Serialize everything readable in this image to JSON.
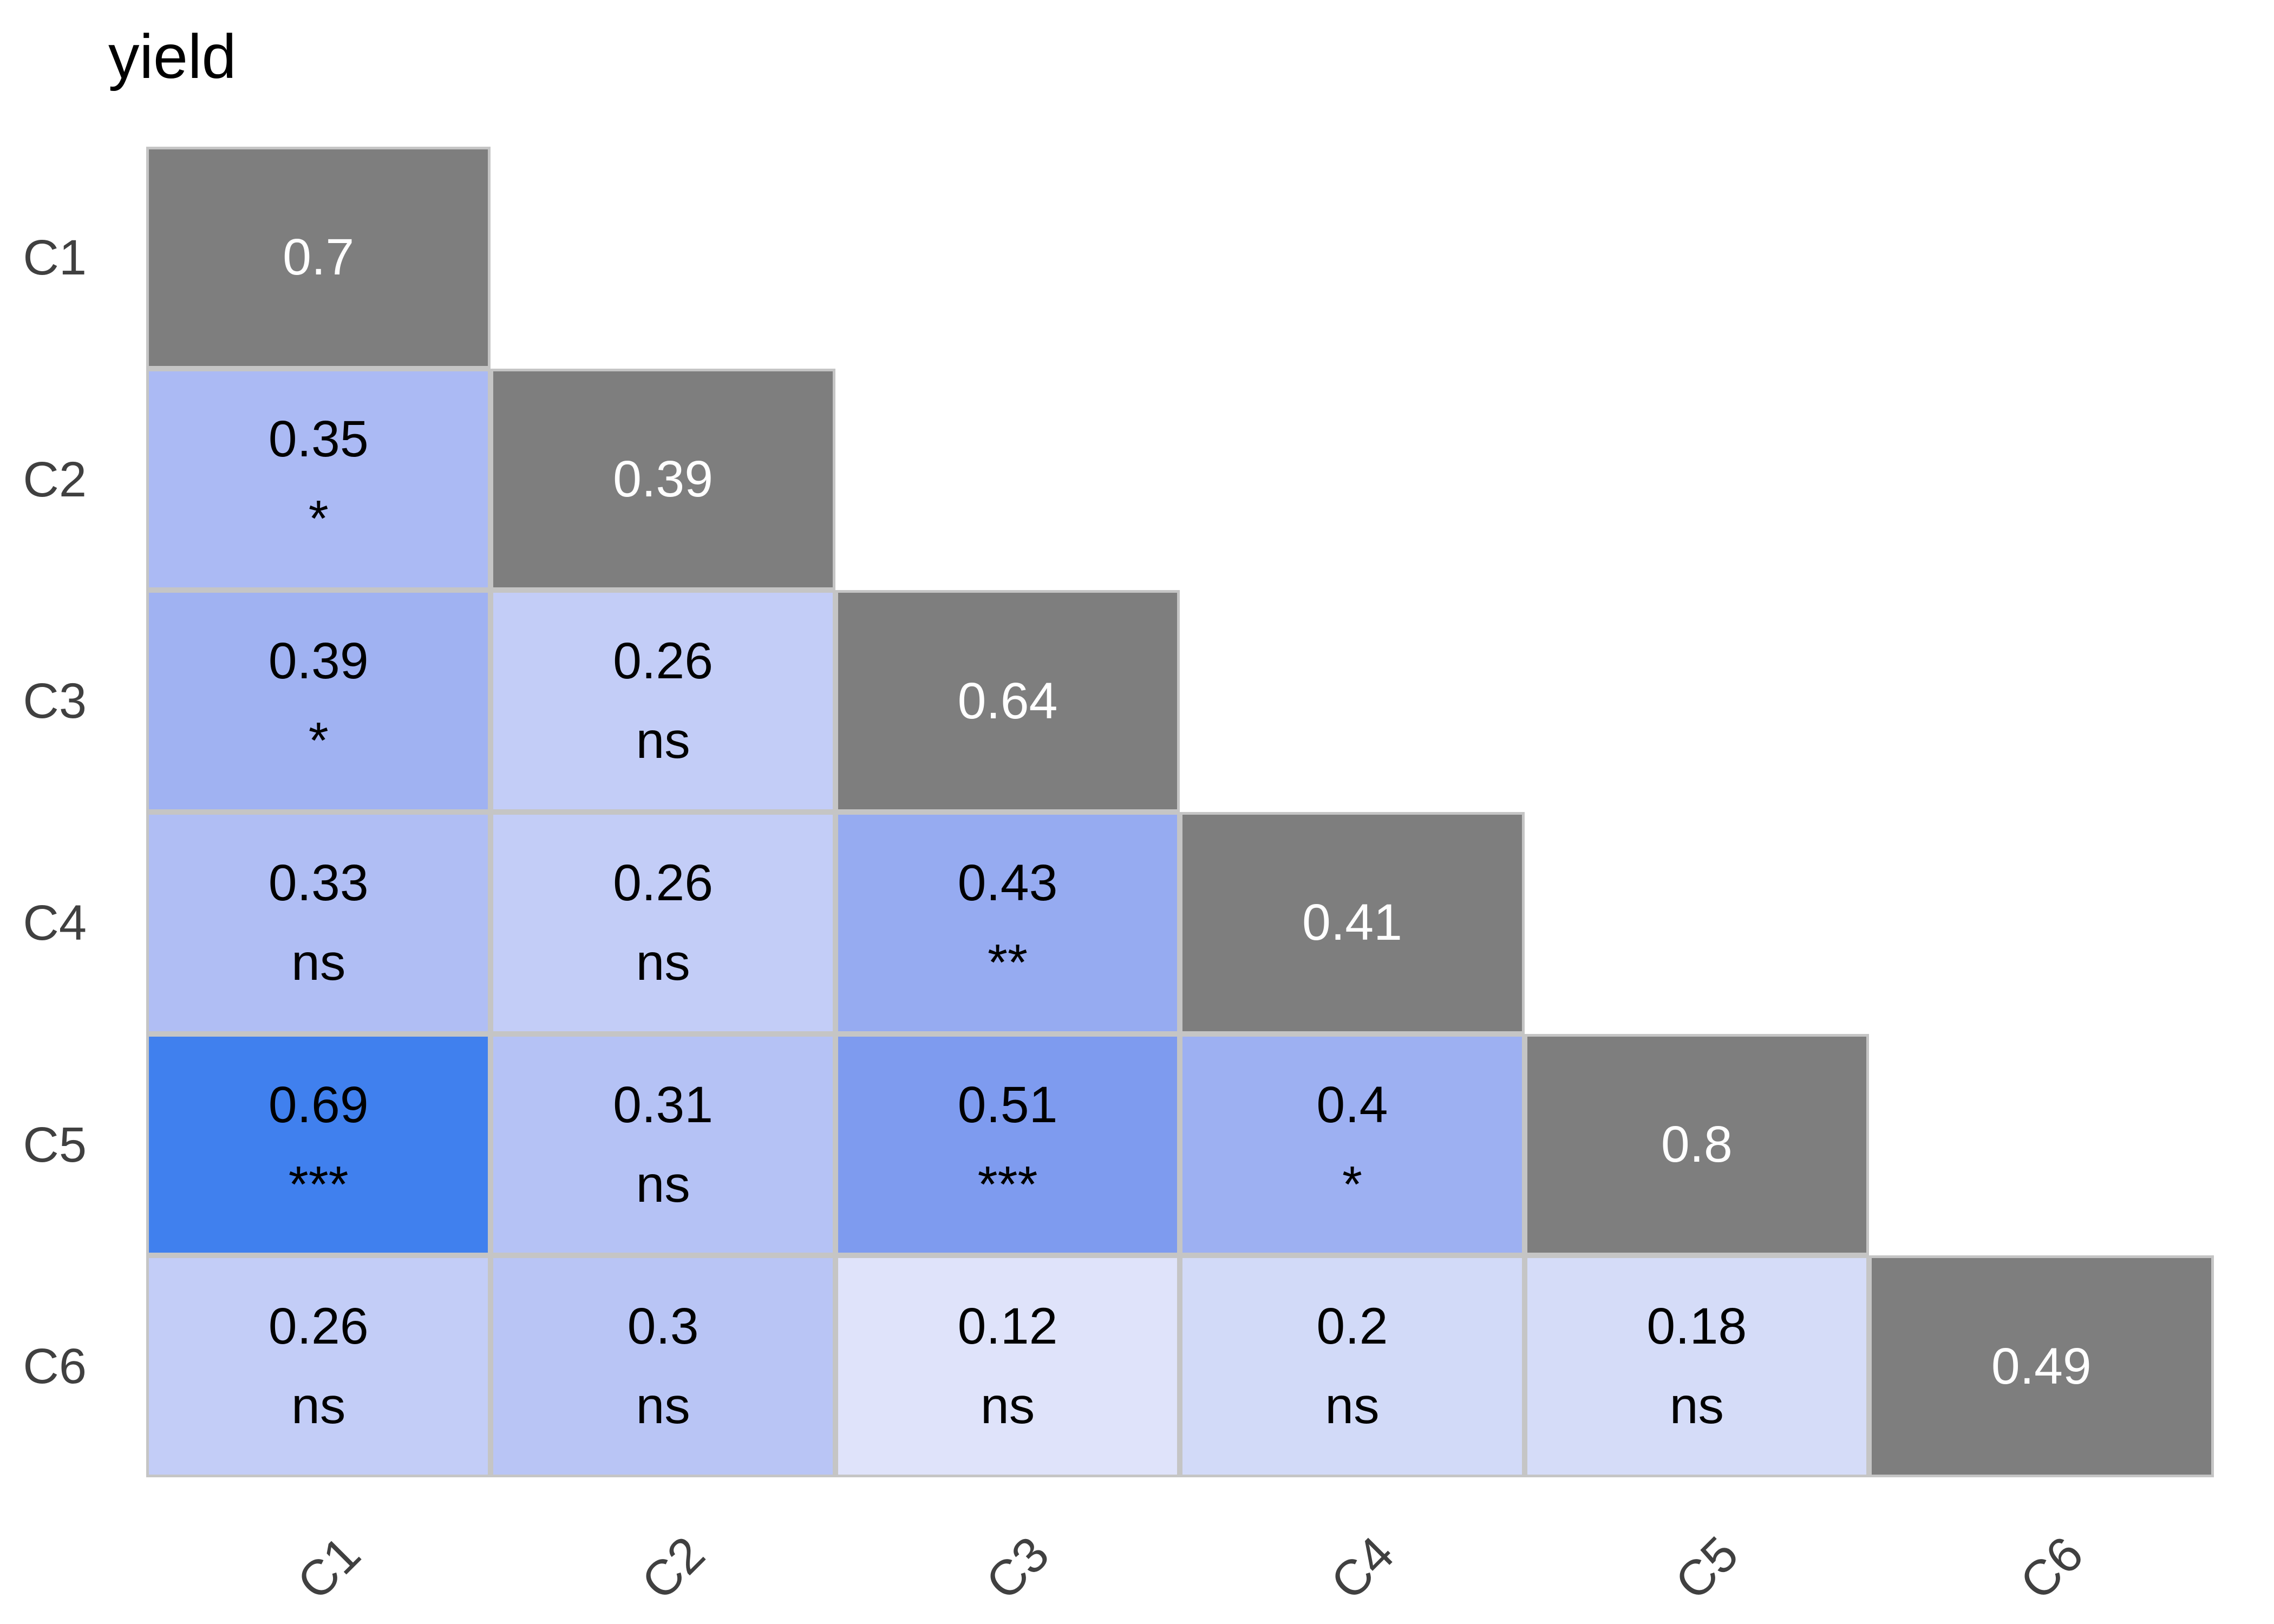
{
  "chart_data": {
    "type": "heatmap",
    "subtype": "lower-triangular-correlation-matrix",
    "title": "yield",
    "variables": [
      "C1",
      "C2",
      "C3",
      "C4",
      "C5",
      "C6"
    ],
    "legend_position": "none",
    "grid": "off",
    "diagonal": {
      "fill": "#7e7e7e",
      "text_color": "#ffffff",
      "display_values": [
        "0.7",
        "0.39",
        "0.64",
        "0.41",
        "0.8",
        "0.49"
      ],
      "values": [
        0.7,
        0.39,
        0.64,
        0.41,
        0.8,
        0.49
      ]
    },
    "cells": [
      {
        "row": "C2",
        "col": "C1",
        "value": 0.35,
        "display": "0.35",
        "sig": "*",
        "color": "#abbaf4"
      },
      {
        "row": "C3",
        "col": "C1",
        "value": 0.39,
        "display": "0.39",
        "sig": "*",
        "color": "#a0b2f2"
      },
      {
        "row": "C3",
        "col": "C2",
        "value": 0.26,
        "display": "0.26",
        "sig": "ns",
        "color": "#c3cdf7"
      },
      {
        "row": "C4",
        "col": "C1",
        "value": 0.33,
        "display": "0.33",
        "sig": "ns",
        "color": "#b0bef4"
      },
      {
        "row": "C4",
        "col": "C2",
        "value": 0.26,
        "display": "0.26",
        "sig": "ns",
        "color": "#c3cdf7"
      },
      {
        "row": "C4",
        "col": "C3",
        "value": 0.43,
        "display": "0.43",
        "sig": "**",
        "color": "#96abf1"
      },
      {
        "row": "C5",
        "col": "C1",
        "value": 0.69,
        "display": "0.69",
        "sig": "***",
        "color": "#4080ee"
      },
      {
        "row": "C5",
        "col": "C2",
        "value": 0.31,
        "display": "0.31",
        "sig": "ns",
        "color": "#b5c2f5"
      },
      {
        "row": "C5",
        "col": "C3",
        "value": 0.51,
        "display": "0.51",
        "sig": "***",
        "color": "#7e9bef"
      },
      {
        "row": "C5",
        "col": "C4",
        "value": 0.4,
        "display": "0.4",
        "sig": "*",
        "color": "#9db0f2"
      },
      {
        "row": "C6",
        "col": "C1",
        "value": 0.26,
        "display": "0.26",
        "sig": "ns",
        "color": "#c3cdf7"
      },
      {
        "row": "C6",
        "col": "C2",
        "value": 0.3,
        "display": "0.3",
        "sig": "ns",
        "color": "#b9c5f5"
      },
      {
        "row": "C6",
        "col": "C3",
        "value": 0.12,
        "display": "0.12",
        "sig": "ns",
        "color": "#dfe3fa"
      },
      {
        "row": "C6",
        "col": "C4",
        "value": 0.2,
        "display": "0.2",
        "sig": "ns",
        "color": "#d2daf8"
      },
      {
        "row": "C6",
        "col": "C5",
        "value": 0.18,
        "display": "0.18",
        "sig": "ns",
        "color": "#d5dcf8"
      }
    ],
    "significance_codes_shown": [
      "ns",
      "*",
      "**",
      "***"
    ],
    "colors": {
      "background": "#ffffff",
      "cell_border": "#c5c5c5",
      "cell_text": "#000000",
      "axis_label_text": "#404040",
      "title_text": "#000000"
    }
  }
}
